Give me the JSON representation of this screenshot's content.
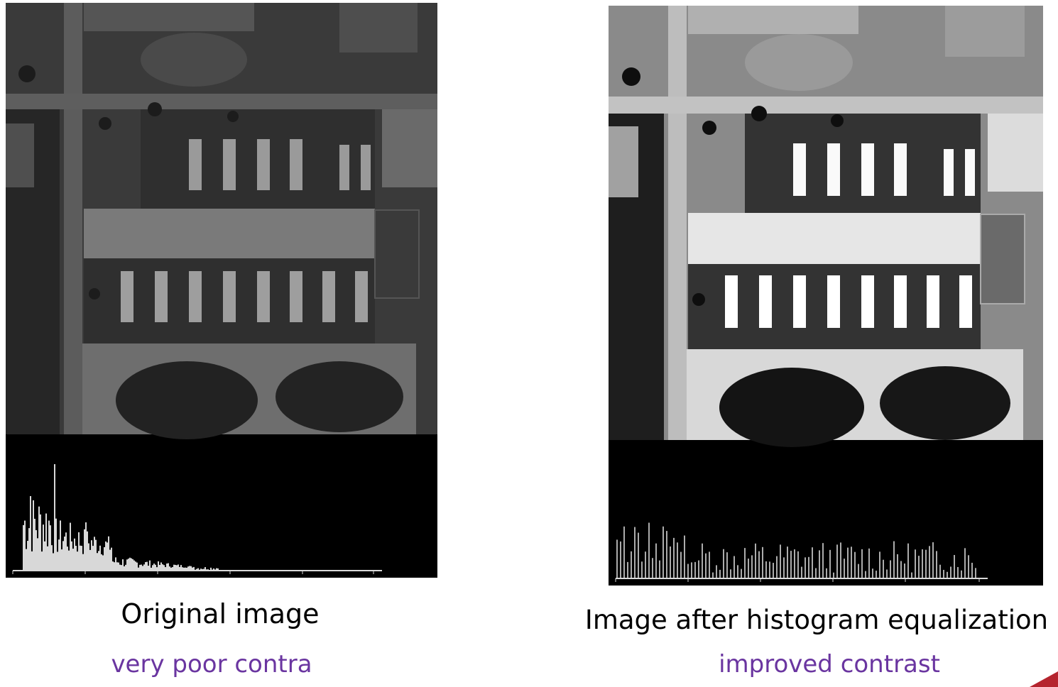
{
  "figures": [
    {
      "id": "original",
      "caption": "Original image",
      "subcaption": "very poor contra",
      "photo_tone": "low-contrast",
      "histogram_shape": "narrow-dark"
    },
    {
      "id": "equalized",
      "caption": "Image after histogram equalization",
      "subcaption": "improved contrast",
      "photo_tone": "high-contrast",
      "histogram_shape": "spread-spiky"
    }
  ],
  "colors": {
    "subcaption": "#6a35a0",
    "histogram_bars": "#d8d8d8",
    "corner_accent": "#b5242e"
  }
}
